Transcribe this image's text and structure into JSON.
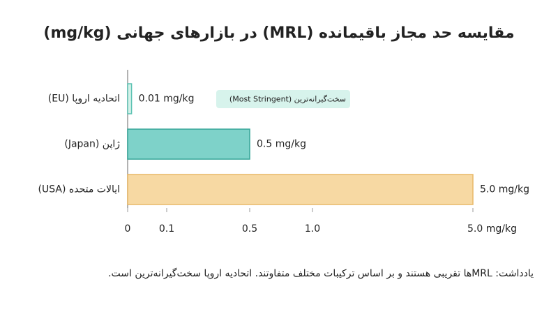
{
  "chart_data": {
    "type": "barh",
    "title": "مقایسه حد مجاز باقیمانده (MRL) در بازارهای جهانی (mg/kg)",
    "categories": [
      "اتحادیه اروپا (EU)",
      "ژاپن (Japan)",
      "ایالات متحده (USA)"
    ],
    "values": [
      0.01,
      0.5,
      5.0
    ],
    "value_labels": [
      "0.01 mg/kg",
      "0.5 mg/kg",
      "5.0 mg/kg"
    ],
    "colors": [
      "#d4f1e9",
      "#7ed2c9",
      "#f7d9a3"
    ],
    "border_colors": [
      "#5cc2b3",
      "#35a598",
      "#e9b866"
    ],
    "xlim": [
      0,
      5
    ],
    "xticks": [
      0,
      0.1,
      0.5,
      {
        "value": 1,
        "label": "1.0"
      },
      {
        "value": 5,
        "label": "5.0 mg/kg"
      }
    ],
    "annotation": "سخت‌گیرانه‌ترین (Most Stringent)",
    "footnote": "یادداشت: MRLها تقریبی هستند و بر اساس ترکیبات مختلف متفاوتند. اتحادیه اروپا سخت‌گیرانه‌ترین است."
  }
}
